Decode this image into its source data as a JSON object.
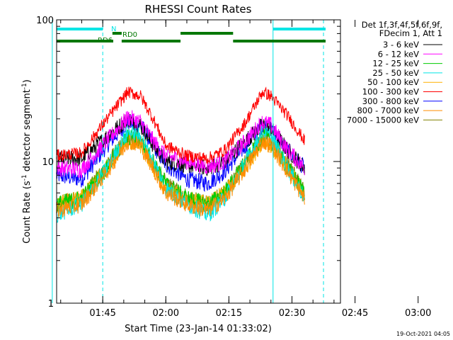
{
  "chart_data": {
    "type": "line",
    "title": "RHESSI Count Rates",
    "xlabel": "Start Time (23-Jan-14 01:33:02)",
    "ylabel": "Count Rate (s⁻¹ detector segment⁻¹)",
    "ylabel_parts": [
      "Count Rate (s",
      "-1",
      " detector segment",
      "-1",
      ")"
    ],
    "yscale": "log",
    "ylim": [
      1,
      100
    ],
    "yticks": [
      "1",
      "10",
      "100"
    ],
    "xlim_minutes": [
      1.0,
      68.5
    ],
    "x_start_minute": 93.033,
    "xticks": [
      {
        "label": "01:45",
        "minutes": 12
      },
      {
        "label": "02:00",
        "minutes": 27
      },
      {
        "label": "02:15",
        "minutes": 42
      },
      {
        "label": "02:30",
        "minutes": 57
      },
      {
        "label": "02:45",
        "minutes": 72
      },
      {
        "label": "03:00",
        "minutes": 87
      }
    ],
    "grid": false,
    "legend_position": "right",
    "legend_header": [
      "Det 1f,3f,4f,5f,6f,9f,",
      "FDecim 1, Att 1"
    ],
    "series": [
      {
        "name": "3 - 6 keV",
        "color": "#000000",
        "values": [
          [
            94,
            10.5
          ],
          [
            100,
            10.5
          ],
          [
            106,
            15
          ],
          [
            111,
            20
          ],
          [
            114,
            18
          ],
          [
            117,
            13
          ],
          [
            120,
            10
          ],
          [
            125,
            9.5
          ],
          [
            130,
            9
          ],
          [
            134,
            10
          ],
          [
            139,
            14
          ],
          [
            143,
            18
          ],
          [
            145,
            17
          ],
          [
            149,
            12
          ],
          [
            153,
            9
          ]
        ]
      },
      {
        "name": "6 - 12 keV",
        "color": "#ff00ff",
        "values": [
          [
            94,
            9
          ],
          [
            100,
            8.8
          ],
          [
            106,
            14
          ],
          [
            111,
            20.5
          ],
          [
            114,
            19
          ],
          [
            117,
            14
          ],
          [
            120,
            11
          ],
          [
            125,
            10
          ],
          [
            130,
            9.2
          ],
          [
            134,
            10
          ],
          [
            139,
            14
          ],
          [
            143,
            19
          ],
          [
            145,
            18
          ],
          [
            149,
            12
          ],
          [
            153,
            9
          ]
        ]
      },
      {
        "name": "12 - 25 keV",
        "color": "#00cc00",
        "values": [
          [
            94,
            5
          ],
          [
            100,
            5.5
          ],
          [
            106,
            9
          ],
          [
            111,
            15
          ],
          [
            114,
            14
          ],
          [
            117,
            10
          ],
          [
            120,
            7
          ],
          [
            125,
            5.5
          ],
          [
            130,
            5
          ],
          [
            134,
            6
          ],
          [
            139,
            10
          ],
          [
            143,
            15
          ],
          [
            145,
            14
          ],
          [
            149,
            9
          ],
          [
            153,
            6
          ]
        ]
      },
      {
        "name": "25 - 50 keV",
        "color": "#00e5e5",
        "values": [
          [
            94,
            4.2
          ],
          [
            100,
            5
          ],
          [
            106,
            9
          ],
          [
            111,
            16
          ],
          [
            114,
            15
          ],
          [
            117,
            10
          ],
          [
            120,
            6.5
          ],
          [
            125,
            5
          ],
          [
            130,
            4.2
          ],
          [
            134,
            5.5
          ],
          [
            139,
            10
          ],
          [
            143,
            16
          ],
          [
            145,
            15
          ],
          [
            149,
            9
          ],
          [
            153,
            5.5
          ]
        ]
      },
      {
        "name": "50 - 100 keV",
        "color": "#ffb000",
        "values": [
          [
            94,
            5
          ],
          [
            100,
            5.5
          ],
          [
            106,
            9
          ],
          [
            111,
            14
          ],
          [
            114,
            13
          ],
          [
            117,
            9
          ],
          [
            120,
            6.5
          ],
          [
            125,
            5.5
          ],
          [
            130,
            5
          ],
          [
            134,
            6
          ],
          [
            139,
            9
          ],
          [
            143,
            14
          ],
          [
            145,
            13
          ],
          [
            149,
            9
          ],
          [
            153,
            6
          ]
        ]
      },
      {
        "name": "100 - 300 keV",
        "color": "#ff0000",
        "values": [
          [
            94,
            11
          ],
          [
            100,
            11.5
          ],
          [
            106,
            20
          ],
          [
            111,
            31
          ],
          [
            114,
            29
          ],
          [
            117,
            20
          ],
          [
            120,
            13
          ],
          [
            125,
            11
          ],
          [
            130,
            10.5
          ],
          [
            134,
            12
          ],
          [
            139,
            19
          ],
          [
            143,
            31
          ],
          [
            145,
            29
          ],
          [
            149,
            21
          ],
          [
            153,
            14
          ]
        ]
      },
      {
        "name": "300 - 800 keV",
        "color": "#0000ff",
        "values": [
          [
            94,
            8
          ],
          [
            100,
            7.5
          ],
          [
            106,
            13
          ],
          [
            111,
            19
          ],
          [
            114,
            18
          ],
          [
            117,
            13
          ],
          [
            120,
            9.5
          ],
          [
            125,
            7.5
          ],
          [
            130,
            7
          ],
          [
            134,
            8.5
          ],
          [
            139,
            13
          ],
          [
            143,
            18
          ],
          [
            145,
            17
          ],
          [
            149,
            12
          ],
          [
            153,
            9
          ]
        ]
      },
      {
        "name": "800 - 7000 keV",
        "color": "#ff8c00",
        "values": [
          [
            94,
            4.5
          ],
          [
            100,
            5
          ],
          [
            106,
            8.5
          ],
          [
            111,
            14
          ],
          [
            114,
            13
          ],
          [
            117,
            9
          ],
          [
            120,
            6
          ],
          [
            125,
            5
          ],
          [
            130,
            4.5
          ],
          [
            134,
            5.5
          ],
          [
            139,
            9
          ],
          [
            143,
            14
          ],
          [
            145,
            13
          ],
          [
            149,
            8.5
          ],
          [
            153,
            5.5
          ]
        ]
      },
      {
        "name": "7000 - 15000 keV",
        "color": "#808000",
        "values": [
          [
            94,
            5
          ],
          [
            100,
            5.5
          ],
          [
            106,
            9.5
          ],
          [
            111,
            15
          ],
          [
            114,
            14
          ],
          [
            117,
            10
          ],
          [
            120,
            7
          ],
          [
            125,
            5.5
          ],
          [
            130,
            5
          ],
          [
            134,
            6
          ],
          [
            139,
            10
          ],
          [
            143,
            15
          ],
          [
            145,
            14
          ],
          [
            149,
            9.5
          ],
          [
            153,
            6
          ]
        ]
      }
    ],
    "flag_bars": [
      {
        "label": "N",
        "color": "#00e5e5",
        "segments": [
          [
            93.0,
            105.0
          ],
          [
            145.5,
            158.0
          ]
        ]
      },
      {
        "label": "RD0",
        "color": "#007700",
        "segments": [
          [
            107.3,
            109.5
          ],
          [
            123.5,
            136.0
          ]
        ]
      },
      {
        "label": "RD6",
        "color": "#007700",
        "segments": [
          [
            93.0,
            107.5
          ],
          [
            109.5,
            123.5
          ],
          [
            136.0,
            158.0
          ]
        ]
      }
    ],
    "vertical_markers": [
      {
        "minute": 93.0,
        "style": "solid",
        "color": "#00e5e5"
      },
      {
        "minute": 105.0,
        "style": "dashed",
        "color": "#00e5e5"
      },
      {
        "minute": 145.5,
        "style": "solid",
        "color": "#00e5e5"
      },
      {
        "minute": 157.5,
        "style": "dashed",
        "color": "#00e5e5"
      }
    ]
  },
  "footer_timestamp": "19-Oct-2021 04:05"
}
